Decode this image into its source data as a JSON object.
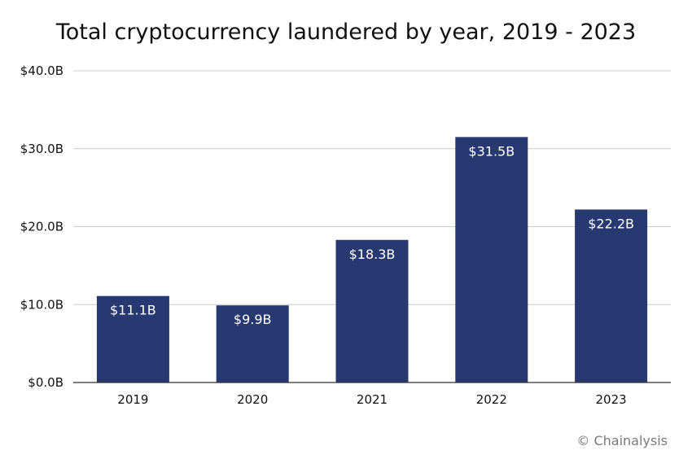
{
  "chart_data": {
    "type": "bar",
    "title": "Total cryptocurrency laundered by year, 2019 - 2023",
    "categories": [
      "2019",
      "2020",
      "2021",
      "2022",
      "2023"
    ],
    "values": [
      11.1,
      9.9,
      18.3,
      31.5,
      22.2
    ],
    "data_labels": [
      "$11.1B",
      "$9.9B",
      "$18.3B",
      "$31.5B",
      "$22.2B"
    ],
    "ylim": [
      0,
      40
    ],
    "yticks": [
      0,
      10,
      20,
      30,
      40
    ],
    "ytick_labels": [
      "$0.0B",
      "$10.0B",
      "$20.0B",
      "$30.0B",
      "$40.0B"
    ],
    "xlabel": "",
    "ylabel": "",
    "grid": true,
    "bar_color": "#283870",
    "grid_color": "#cccccc",
    "axis_color": "#333333"
  },
  "credit": "© Chainalysis"
}
